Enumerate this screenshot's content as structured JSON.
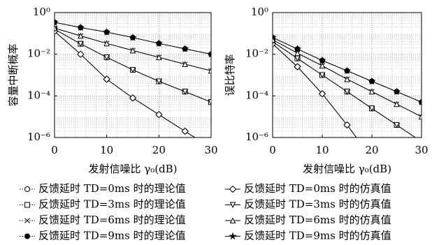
{
  "chart_data": [
    {
      "type": "line",
      "xlabel": "发射信噪比 γ₀(dB)",
      "ylabel": "容量中断概率",
      "log_y": true,
      "grid": true,
      "x": [
        0,
        5,
        10,
        15,
        20,
        25,
        30
      ],
      "xlim": [
        0,
        30
      ],
      "xticks": [
        0,
        10,
        20,
        30
      ],
      "ylim": [
        1e-06,
        1
      ],
      "yticks": [
        {
          "value": 1,
          "label": "10⁰"
        },
        {
          "value": 0.01,
          "label": "10⁻²"
        },
        {
          "value": 0.0001,
          "label": "10⁻⁴"
        },
        {
          "value": 1e-06,
          "label": "10⁻⁶"
        }
      ],
      "series": [
        {
          "name": "反馈延时 TD=0ms 时的理论值",
          "color": "#000000",
          "dash": "dotted",
          "marker": "circle",
          "values": [
            0.126,
            0.01,
            0.00063,
            7.9e-05,
            1.26e-05,
            2e-06,
            3.2e-07
          ]
        },
        {
          "name": "反馈延时 TD=3ms 时的理论值",
          "color": "#000000",
          "dash": "dotted",
          "marker": "square",
          "values": [
            0.158,
            0.0316,
            0.0071,
            0.00178,
            0.0005,
            0.00016,
            5e-05
          ]
        },
        {
          "name": "反馈延时 TD=6ms 时的理论值",
          "color": "#000000",
          "dash": "dotted",
          "marker": "x",
          "values": [
            0.18,
            0.076,
            0.033,
            0.015,
            0.0071,
            0.0033,
            0.0016
          ]
        },
        {
          "name": "反馈延时 TD=9ms 时的理论值",
          "color": "#000000",
          "dash": "dotted",
          "marker": "dot",
          "values": [
            0.34,
            0.19,
            0.115,
            0.063,
            0.033,
            0.018,
            0.01
          ]
        },
        {
          "name": "反馈延时 TD=0ms 时的仿真值",
          "color": "#000000",
          "dash": "solid",
          "marker": "diamond",
          "values": [
            0.126,
            0.01,
            0.00063,
            7.9e-05,
            1.26e-05,
            2e-06,
            3.2e-07
          ]
        },
        {
          "name": "反馈延时 TD=3ms 时的仿真值",
          "color": "#000000",
          "dash": "solid",
          "marker": "tri-down",
          "values": [
            0.158,
            0.0316,
            0.0071,
            0.00178,
            0.0005,
            0.00016,
            5e-05
          ]
        },
        {
          "name": "反馈延时 TD=6ms 时的仿真值",
          "color": "#000000",
          "dash": "solid",
          "marker": "tri-up",
          "values": [
            0.18,
            0.076,
            0.033,
            0.015,
            0.0071,
            0.0033,
            0.0016
          ]
        },
        {
          "name": "反馈延时 TD=9ms 时的仿真值",
          "color": "#000000",
          "dash": "solid",
          "marker": "star",
          "values": [
            0.34,
            0.19,
            0.115,
            0.063,
            0.033,
            0.018,
            0.01
          ]
        }
      ]
    },
    {
      "type": "line",
      "xlabel": "发射信噪比 γ₀(dB)",
      "ylabel": "误比特率",
      "log_y": true,
      "grid": true,
      "x": [
        0,
        5,
        10,
        15,
        20,
        25,
        30
      ],
      "xlim": [
        0,
        30
      ],
      "xticks": [
        0,
        10,
        20,
        30
      ],
      "ylim": [
        1e-06,
        1
      ],
      "yticks": [
        {
          "value": 1,
          "label": "10⁰"
        },
        {
          "value": 0.01,
          "label": "10⁻²"
        },
        {
          "value": 0.0001,
          "label": "10⁻⁴"
        },
        {
          "value": 1e-06,
          "label": "10⁻⁶"
        }
      ],
      "series": [
        {
          "color": "#000000",
          "dash": "dotted",
          "marker": "circle",
          "values": [
            0.0316,
            0.0025,
            0.000126,
            4e-06,
            1e-07,
            null,
            null
          ]
        },
        {
          "color": "#000000",
          "dash": "dotted",
          "marker": "square",
          "values": [
            0.04,
            0.0063,
            0.001,
            0.00016,
            2.5e-05,
            4e-06,
            6.3e-07
          ]
        },
        {
          "color": "#000000",
          "dash": "dotted",
          "marker": "x",
          "values": [
            0.05,
            0.0112,
            0.0028,
            0.00063,
            0.00016,
            4e-05,
            1e-05
          ]
        },
        {
          "color": "#000000",
          "dash": "dotted",
          "marker": "dot",
          "values": [
            0.063,
            0.0178,
            0.005,
            0.0016,
            0.0005,
            0.00016,
            5e-05
          ]
        },
        {
          "color": "#000000",
          "dash": "solid",
          "marker": "diamond",
          "values": [
            0.0316,
            0.0025,
            0.000126,
            4e-06,
            1e-07,
            null,
            null
          ]
        },
        {
          "color": "#000000",
          "dash": "solid",
          "marker": "tri-down",
          "values": [
            0.04,
            0.0063,
            0.001,
            0.00016,
            2.5e-05,
            4e-06,
            6.3e-07
          ]
        },
        {
          "color": "#000000",
          "dash": "solid",
          "marker": "tri-up",
          "values": [
            0.05,
            0.0112,
            0.0028,
            0.00063,
            0.00016,
            4e-05,
            1e-05
          ]
        },
        {
          "color": "#000000",
          "dash": "solid",
          "marker": "star",
          "values": [
            0.063,
            0.0178,
            0.005,
            0.0016,
            0.0005,
            0.00016,
            5e-05
          ]
        }
      ]
    }
  ]
}
